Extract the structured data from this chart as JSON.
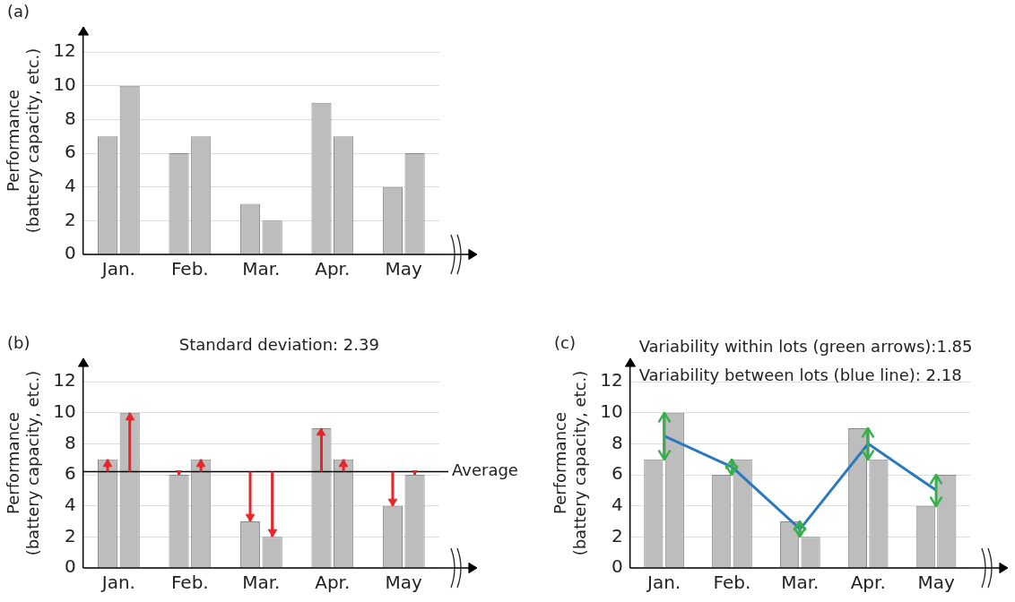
{
  "chart_data": [
    {
      "type": "bar",
      "categories": [
        "Jan.",
        "Feb.",
        "Mar.",
        "Apr.",
        "May"
      ],
      "ylabel": "Performance\n(battery capacity, etc.)",
      "ylim": [
        0,
        13.5
      ],
      "yticks": [
        0,
        2,
        4,
        6,
        8,
        10,
        12
      ],
      "grid": "y",
      "legend": false,
      "annotations": [
        "(a)"
      ],
      "series": [
        {
          "color": "#bdbdbe",
          "values": [
            7,
            6,
            3,
            9,
            4
          ]
        },
        {
          "color": "#bdbdbe",
          "values": [
            10,
            7,
            2,
            7,
            6
          ]
        }
      ]
    },
    {
      "type": "bar",
      "categories": [
        "Jan.",
        "Feb.",
        "Mar.",
        "Apr.",
        "May"
      ],
      "ylabel": "Performance\n(battery capacity, etc.)",
      "ylim": [
        0,
        13.5
      ],
      "yticks": [
        0,
        2,
        4,
        6,
        8,
        10,
        12
      ],
      "grid": "y",
      "legend": false,
      "annotations": [
        "(b)",
        "Standard deviation: 2.39"
      ],
      "ref_lines": [
        {
          "axis": "y",
          "value": 6.2,
          "label": "Average",
          "color": "#000000"
        }
      ],
      "series": [
        {
          "color": "#bdbdbe",
          "values": [
            7,
            6,
            3,
            9,
            4
          ],
          "errors": [
            [
              6.2,
              7
            ],
            [
              6,
              6.2
            ],
            [
              3,
              6.2
            ],
            [
              6.2,
              9
            ],
            [
              4,
              6.2
            ]
          ]
        },
        {
          "color": "#bdbdbe",
          "values": [
            10,
            7,
            2,
            7,
            6
          ],
          "errors": [
            [
              6.2,
              10
            ],
            [
              6.2,
              7
            ],
            [
              2,
              6.2
            ],
            [
              6.2,
              7
            ],
            [
              6,
              6.2
            ]
          ]
        }
      ]
    },
    {
      "type": "bar",
      "categories": [
        "Jan.",
        "Feb.",
        "Mar.",
        "Apr.",
        "May"
      ],
      "ylabel": "Performance\n(battery capacity, etc.)",
      "ylim": [
        0,
        13.5
      ],
      "yticks": [
        0,
        2,
        4,
        6,
        8,
        10,
        12
      ],
      "grid": "y",
      "legend": false,
      "annotations": [
        "(c)",
        "Variability within lots (green arrows):1.85",
        "Variability between lots (blue line): 2.18"
      ],
      "series": [
        {
          "color": "#bdbdbe",
          "values": [
            7,
            6,
            3,
            9,
            4
          ]
        },
        {
          "color": "#bdbdbe",
          "values": [
            10,
            7,
            2,
            7,
            6
          ]
        },
        {
          "type": "line",
          "color": "#2a78bd",
          "values": [
            8.5,
            6.5,
            2.5,
            8,
            5
          ],
          "errors": [
            [
              7,
              10
            ],
            [
              6,
              7
            ],
            [
              2,
              3
            ],
            [
              7,
              9
            ],
            [
              4,
              6
            ]
          ]
        }
      ]
    }
  ]
}
